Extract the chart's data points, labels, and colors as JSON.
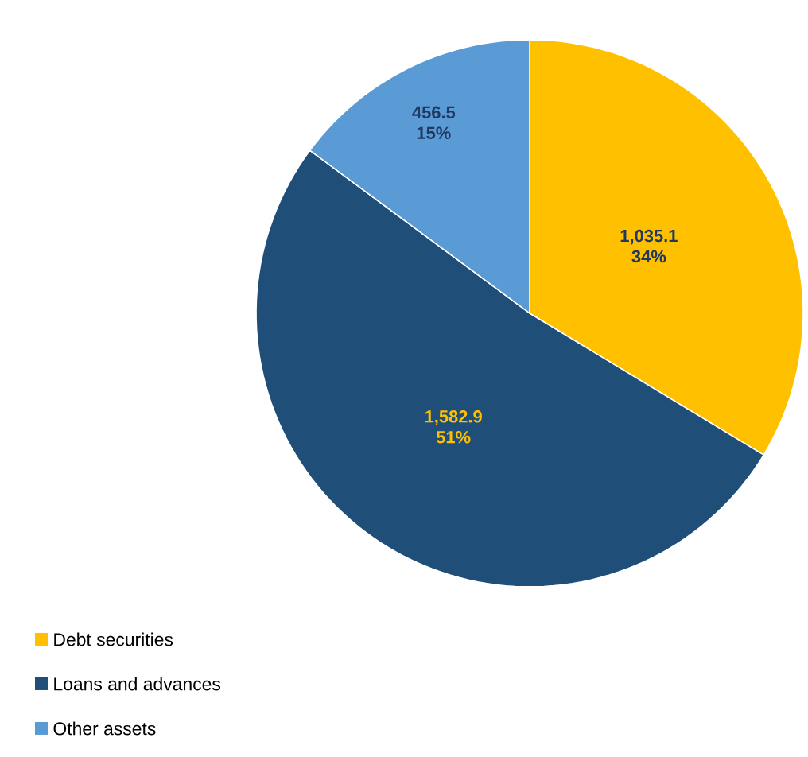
{
  "chart_data": {
    "type": "pie",
    "categories": [
      "Debt securities",
      "Loans and advances",
      "Other assets"
    ],
    "values": [
      1035.1,
      1582.9,
      456.5
    ],
    "colors": [
      "#ffc000",
      "#1f4e79",
      "#5b9bd5"
    ],
    "value_labels": [
      "1,035.1 34%",
      "1,582.9 51%",
      "456.5 15%"
    ],
    "legend": "bottom left"
  }
}
